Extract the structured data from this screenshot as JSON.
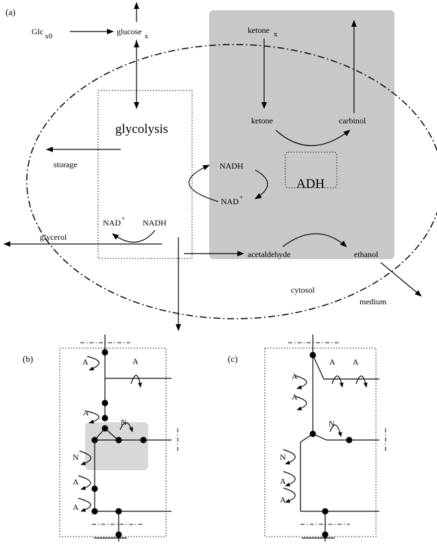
{
  "panels": {
    "a": "(a)",
    "b": "(b)",
    "c": "(c)"
  },
  "labels": {
    "glc": "Glc",
    "glc_sub": "x0",
    "glucose": "glucose",
    "glucose_sub": "x",
    "ketone_x": "ketone",
    "ketone_x_sub": "x",
    "ketone": "ketone",
    "carbinol": "carbinol",
    "glycolysis": "glycolysis",
    "storage": "storage",
    "nadh_top": "NADH",
    "adh": "ADH",
    "nad_right": "NAD",
    "nad_right_sup": "+",
    "nad_left": "NAD",
    "nad_left_sup": "+",
    "nadh_left": "NADH",
    "glycerol": "glycerol",
    "acetaldehyde": "acetaldehyde",
    "ethanol": "ethanol",
    "cytosol": "cytosol",
    "medium": "medium"
  },
  "panel_b": {
    "a1": "A",
    "a2": "A",
    "a3": "A",
    "n1": "N",
    "n2": "N",
    "a4": "A",
    "a5": "A"
  },
  "panel_c": {
    "a1": "A",
    "a2": "A",
    "a3": "A",
    "a4": "A",
    "n1": "N",
    "n2": "N",
    "a5": "A",
    "a6": "A"
  },
  "colors": {
    "shade": "#c8c8c8",
    "highlight": "#d8d8d8",
    "ink": "#000000"
  }
}
